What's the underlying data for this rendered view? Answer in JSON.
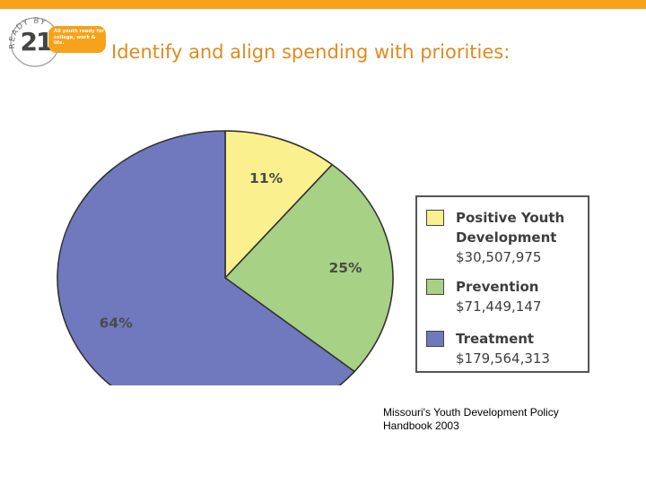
{
  "slide": {
    "title": "Identify and align spending with priorities:",
    "accent_color": "#f7a21b",
    "source": "Missouri's Youth Development Policy Handbook 2003"
  },
  "logo": {
    "ring_text": "READY BY",
    "number": "21",
    "tagline_lines": [
      "All youth ready for",
      "college, work & life."
    ]
  },
  "chart_data": {
    "type": "pie",
    "title": "",
    "slices": [
      {
        "name": "Positive Youth Development",
        "name_lines": [
          "Positive Youth",
          "Development"
        ],
        "amount": "$30,507,975",
        "value": 11,
        "label": "11%",
        "color": "#fbf08e"
      },
      {
        "name": "Prevention",
        "name_lines": [
          "Prevention"
        ],
        "amount": "$71,449,147",
        "value": 25,
        "label": "25%",
        "color": "#a7d184"
      },
      {
        "name": "Treatment",
        "name_lines": [
          "Treatment"
        ],
        "amount": "$179,564,313",
        "value": 64,
        "label": "64%",
        "color": "#7079bd"
      }
    ],
    "legend_position": "right"
  }
}
